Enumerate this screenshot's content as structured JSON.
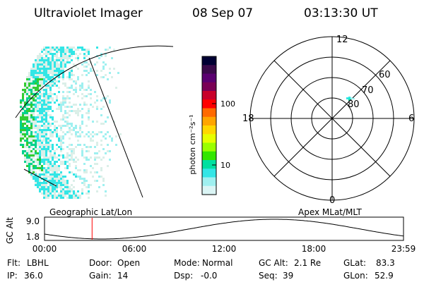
{
  "header": {
    "instrument": "Ultraviolet Imager",
    "date": "08 Sep 07",
    "time": "03:13:30 UT"
  },
  "colorbar": {
    "unit_label": "photon cm⁻²s⁻¹",
    "ticks": [
      "100",
      "10"
    ],
    "colors": [
      "#000033",
      "#3a0a4a",
      "#5a0070",
      "#7a0055",
      "#c8002a",
      "#ff0000",
      "#ff6a00",
      "#ffa500",
      "#ffd700",
      "#e6ff00",
      "#9aff00",
      "#33e600",
      "#00e0a0",
      "#33e6e6",
      "#9ff0f0",
      "#dbf5f5"
    ]
  },
  "polar_plot": {
    "mlt_labels": [
      "12",
      "18",
      "6",
      "0"
    ],
    "lat_labels": [
      "60",
      "70",
      "80"
    ]
  },
  "timeline": {
    "y_axis_title": "GC Alt",
    "y_ticks": [
      "9.0",
      "1.8"
    ],
    "left_title": "Geographic Lat/Lon",
    "right_title": "Apex MLat/MLT",
    "x_ticks": [
      "00:00",
      "06:00",
      "12:00",
      "18:00",
      "23:59"
    ],
    "current_time_marker_fraction": 0.1325,
    "marker_color": "#ff0000"
  },
  "status": {
    "row1": [
      {
        "key": "Flt:",
        "value": "LBHL"
      },
      {
        "key": "Door:",
        "value": "Open"
      },
      {
        "key": "Mode:",
        "value": "Normal"
      },
      {
        "key": "GC Alt:",
        "value": "2.1 Re"
      },
      {
        "key": "GLat:",
        "value": "83.3"
      }
    ],
    "row2": [
      {
        "key": "IP:",
        "value": "36.0"
      },
      {
        "key": "Gain:",
        "value": "14"
      },
      {
        "key": "Dsp:",
        "value": "-0.0"
      },
      {
        "key": "Seq:",
        "value": "39"
      },
      {
        "key": "GLon:",
        "value": "52.9"
      }
    ]
  }
}
